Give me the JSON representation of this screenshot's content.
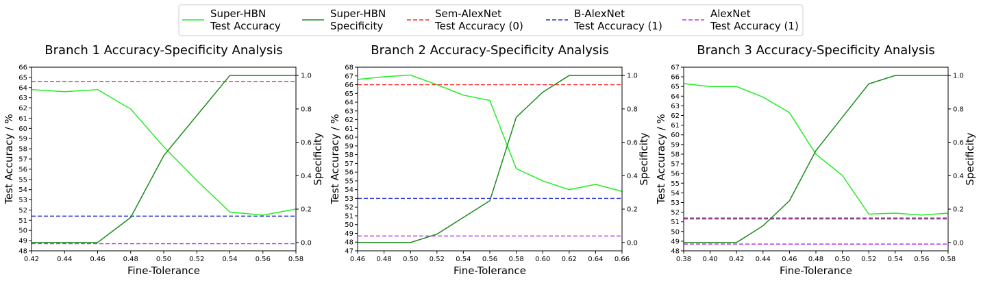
{
  "legend": {
    "items": [
      {
        "line1": "Super-HBN",
        "line2": "Test Accuracy",
        "color": "#22ee22",
        "dashed": false
      },
      {
        "line1": "Super-HBN",
        "line2": "Specificity",
        "color": "#1a8c1a",
        "dashed": false
      },
      {
        "line1": "Sem-AlexNet",
        "line2": "Test Accuracy (0)",
        "color": "#ff2a2a",
        "dashed": true
      },
      {
        "line1": "B-AlexNet",
        "line2": "Test Accuracy (1)",
        "color": "#2233cc",
        "dashed": true
      },
      {
        "line1": "AlexNet",
        "line2": "Test Accuracy (1)",
        "color": "#bb33ee",
        "dashed": true
      }
    ]
  },
  "chart_data": [
    {
      "type": "line",
      "title": "Branch 1 Accuracy-Specificity Analysis",
      "xlabel": "Fine-Tolerance",
      "ylabel": "Test Accuracy / %",
      "y2label": "Specificity",
      "xlim": [
        0.42,
        0.58
      ],
      "ylim": [
        48,
        66
      ],
      "y2lim": [
        -0.05,
        1.05
      ],
      "x": [
        0.42,
        0.44,
        0.46,
        0.48,
        0.5,
        0.52,
        0.54,
        0.56,
        0.58
      ],
      "x_ticks": [
        "0.42",
        "0.44",
        "0.46",
        "0.48",
        "0.50",
        "0.52",
        "0.54",
        "0.56",
        "0.58"
      ],
      "y_ticks": [
        "48",
        "49",
        "50",
        "51",
        "52",
        "53",
        "54",
        "55",
        "56",
        "57",
        "58",
        "59",
        "60",
        "61",
        "62",
        "63",
        "64",
        "65",
        "66"
      ],
      "y2_ticks": [
        "0.0",
        "0.2",
        "0.4",
        "0.6",
        "0.8",
        "1.0"
      ],
      "series": [
        {
          "name": "Super-HBN Test Accuracy",
          "axis": "left",
          "values": [
            63.8,
            63.6,
            63.8,
            61.9,
            58.2,
            54.9,
            51.8,
            51.5,
            52.1
          ]
        },
        {
          "name": "Super-HBN Specificity",
          "axis": "right",
          "values": [
            0.0,
            0.0,
            0.0,
            0.15,
            0.52,
            0.76,
            1.0,
            1.0,
            1.0
          ]
        },
        {
          "name": "Sem-AlexNet Test Accuracy (0)",
          "axis": "left",
          "constant": 64.6
        },
        {
          "name": "B-AlexNet Test Accuracy (1)",
          "axis": "left",
          "constant": 51.4
        },
        {
          "name": "AlexNet Test Accuracy (1)",
          "axis": "left",
          "constant": 48.7
        }
      ]
    },
    {
      "type": "line",
      "title": "Branch 2 Accuracy-Specificity Analysis",
      "xlabel": "Fine-Tolerance",
      "ylabel": "Test Accuracy / %",
      "y2label": "Specificity",
      "xlim": [
        0.46,
        0.66
      ],
      "ylim": [
        47,
        68
      ],
      "y2lim": [
        -0.05,
        1.05
      ],
      "x": [
        0.46,
        0.48,
        0.5,
        0.52,
        0.54,
        0.56,
        0.58,
        0.6,
        0.62,
        0.64,
        0.66
      ],
      "x_ticks": [
        "0.46",
        "0.48",
        "0.50",
        "0.52",
        "0.54",
        "0.56",
        "0.58",
        "0.60",
        "0.62",
        "0.64",
        "0.66"
      ],
      "y_ticks": [
        "47",
        "48",
        "49",
        "50",
        "51",
        "52",
        "53",
        "54",
        "55",
        "56",
        "57",
        "58",
        "59",
        "60",
        "61",
        "62",
        "63",
        "64",
        "65",
        "66",
        "67",
        "68"
      ],
      "y2_ticks": [
        "0.0",
        "0.2",
        "0.4",
        "0.6",
        "0.8",
        "1.0"
      ],
      "series": [
        {
          "name": "Super-HBN Test Accuracy",
          "axis": "left",
          "values": [
            66.6,
            66.9,
            67.1,
            66.0,
            64.8,
            64.2,
            56.4,
            55.0,
            54.0,
            54.6,
            53.8
          ]
        },
        {
          "name": "Super-HBN Specificity",
          "axis": "right",
          "values": [
            0.0,
            0.0,
            0.0,
            0.05,
            0.15,
            0.25,
            0.75,
            0.9,
            1.0,
            1.0,
            1.0
          ]
        },
        {
          "name": "Sem-AlexNet Test Accuracy (0)",
          "axis": "left",
          "constant": 66.0
        },
        {
          "name": "B-AlexNet Test Accuracy (1)",
          "axis": "left",
          "constant": 53.0
        },
        {
          "name": "AlexNet Test Accuracy (1)",
          "axis": "left",
          "constant": 48.7
        }
      ]
    },
    {
      "type": "line",
      "title": "Branch 3 Accuracy-Specificity Analysis",
      "xlabel": "Fine-Tolerance",
      "ylabel": "Test Accuracy / %",
      "y2label": "Specificity",
      "xlim": [
        0.38,
        0.58
      ],
      "ylim": [
        48,
        67
      ],
      "y2lim": [
        -0.05,
        1.05
      ],
      "x": [
        0.38,
        0.4,
        0.42,
        0.44,
        0.46,
        0.48,
        0.5,
        0.52,
        0.54,
        0.56,
        0.58
      ],
      "x_ticks": [
        "0.38",
        "0.40",
        "0.42",
        "0.44",
        "0.46",
        "0.48",
        "0.50",
        "0.52",
        "0.54",
        "0.56",
        "0.58"
      ],
      "y_ticks": [
        "48",
        "49",
        "50",
        "51",
        "52",
        "53",
        "54",
        "55",
        "56",
        "57",
        "58",
        "59",
        "60",
        "61",
        "62",
        "63",
        "64",
        "65",
        "66",
        "67"
      ],
      "y2_ticks": [
        "0.0",
        "0.2",
        "0.4",
        "0.6",
        "0.8",
        "1.0"
      ],
      "series": [
        {
          "name": "Super-HBN Test Accuracy",
          "axis": "left",
          "values": [
            65.3,
            65.0,
            65.0,
            63.9,
            62.3,
            58.0,
            55.8,
            51.8,
            51.9,
            51.7,
            51.9
          ]
        },
        {
          "name": "Super-HBN Specificity",
          "axis": "right",
          "values": [
            0.0,
            0.0,
            0.0,
            0.1,
            0.25,
            0.55,
            0.75,
            0.95,
            1.0,
            1.0,
            1.0
          ]
        },
        {
          "name": "Sem-AlexNet Test Accuracy (0)",
          "axis": "left",
          "constant": 51.4
        },
        {
          "name": "B-AlexNet Test Accuracy (1)",
          "axis": "left",
          "constant": 51.3
        },
        {
          "name": "AlexNet Test Accuracy (1)",
          "axis": "left",
          "constant": 48.7
        }
      ]
    }
  ]
}
